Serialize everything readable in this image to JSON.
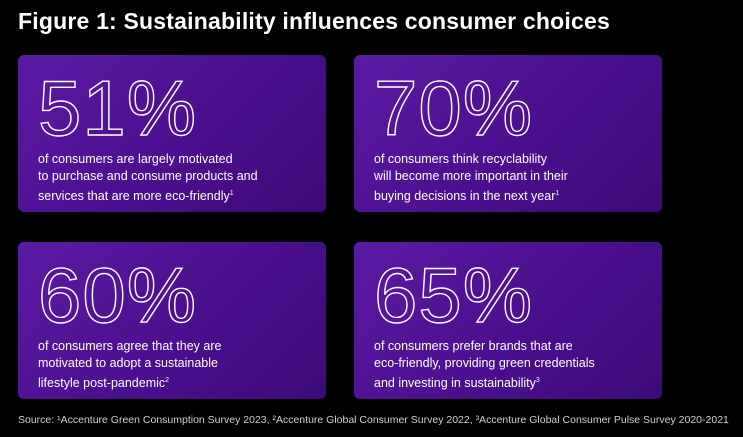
{
  "title": "Figure 1: Sustainability influences consumer choices",
  "cards": [
    {
      "stat": "51%",
      "lines": [
        "of consumers are largely motivated",
        "to purchase and consume products and",
        "services that are more eco-friendly"
      ],
      "note": "1"
    },
    {
      "stat": "70%",
      "lines": [
        "of consumers think recyclability",
        "will become more important in their",
        "buying decisions in the next year"
      ],
      "note": "1"
    },
    {
      "stat": "60%",
      "lines": [
        "of consumers agree that they are",
        "motivated to adopt a sustainable",
        "lifestyle post-pandemic"
      ],
      "note": "2"
    },
    {
      "stat": "65%",
      "lines": [
        "of consumers prefer brands that are",
        "eco-friendly, providing green credentials",
        "and investing in sustainability"
      ],
      "note": "3"
    }
  ],
  "source": "Source: ¹Accenture Green Consumption Survey 2023, ²Accenture Global Consumer Survey 2022, ³Accenture Global Consumer Pulse Survey 2020-2021"
}
